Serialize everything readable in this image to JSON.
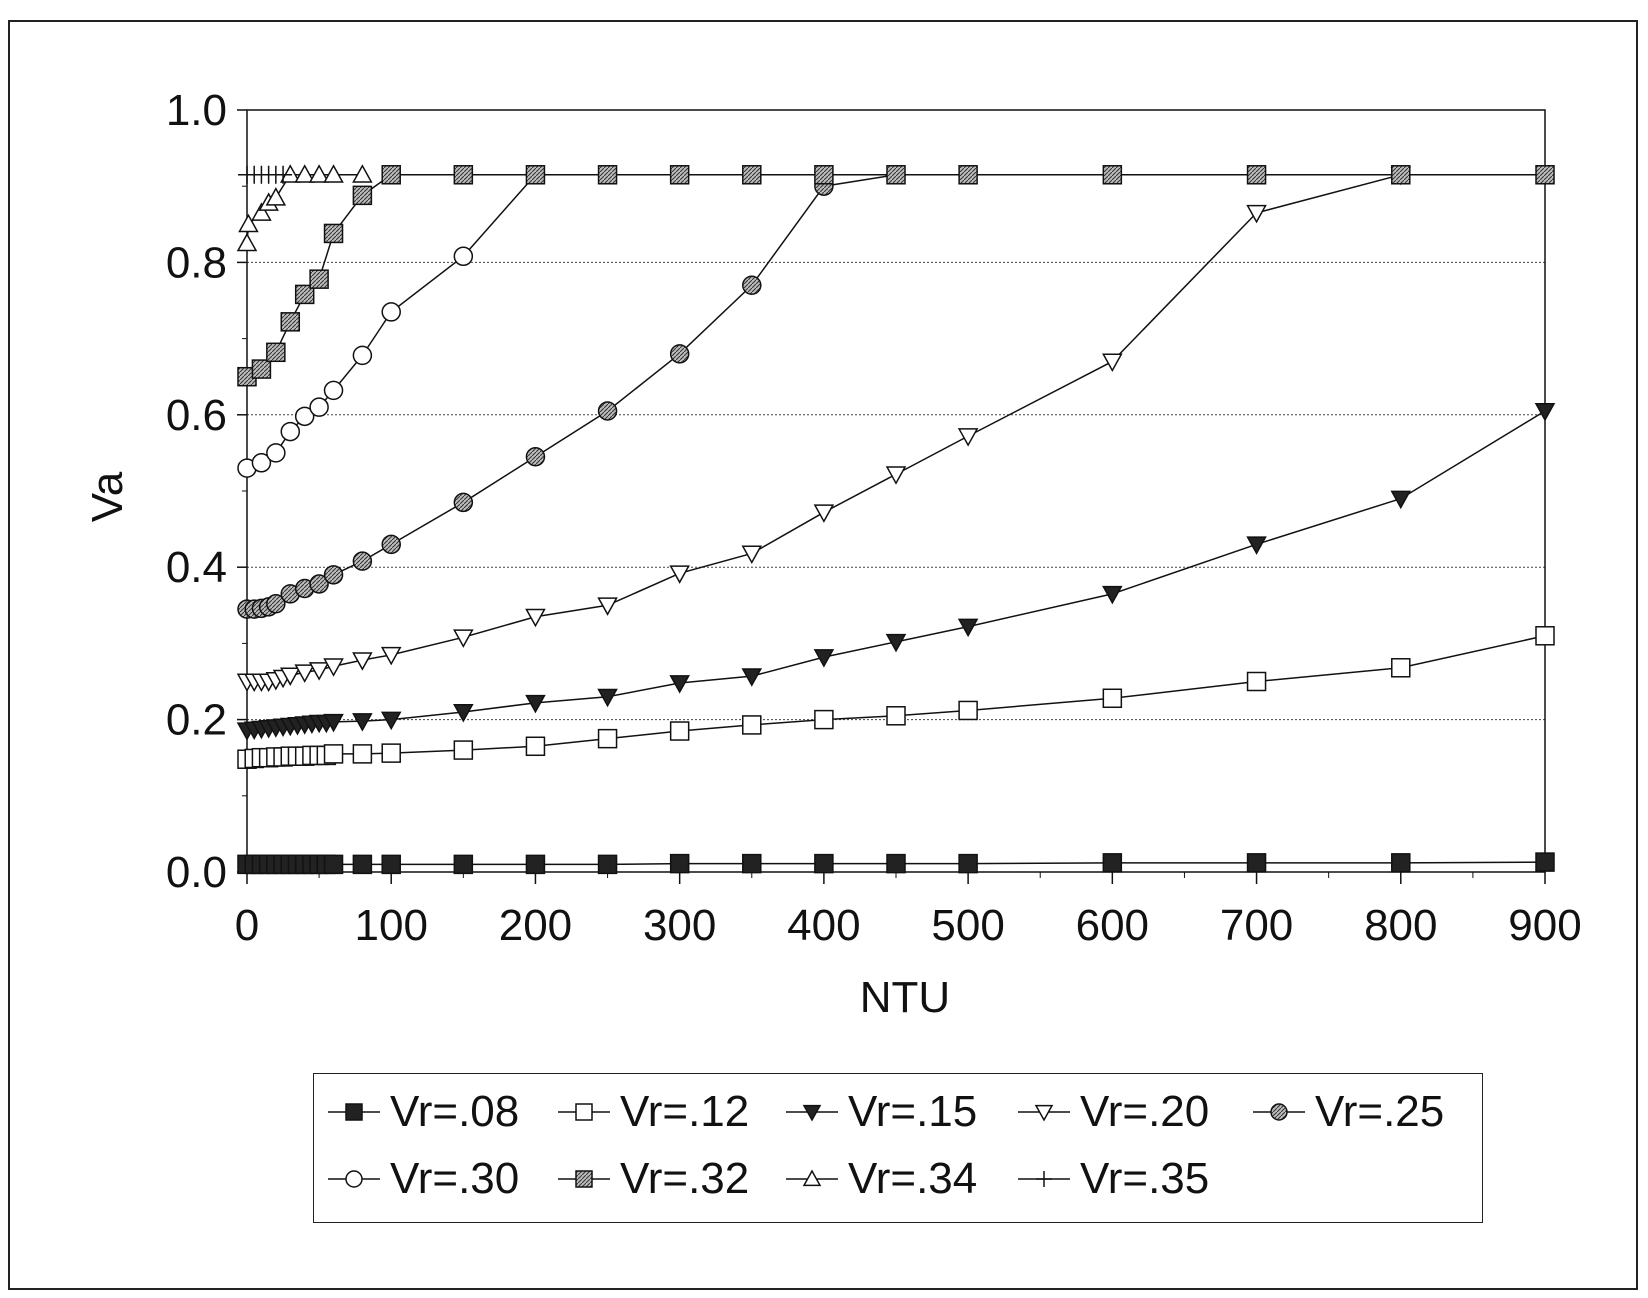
{
  "chart_data": {
    "type": "line",
    "title": "",
    "xlabel": "NTU",
    "ylabel": "Va",
    "xlim": [
      0,
      900
    ],
    "ylim": [
      0,
      1.0
    ],
    "x_ticks": [
      "0",
      "100",
      "200",
      "300",
      "400",
      "500",
      "600",
      "700",
      "800",
      "900"
    ],
    "y_ticks": [
      "0.0",
      "0.2",
      "0.4",
      "0.6",
      "0.8",
      "1.0"
    ],
    "grid": "horizontal dotted",
    "legend_position": "bottom",
    "series": [
      {
        "name": "Vr=.08",
        "marker": "filled-square",
        "x": [
          0,
          5,
          10,
          15,
          20,
          25,
          30,
          35,
          40,
          45,
          50,
          55,
          60,
          80,
          100,
          150,
          200,
          250,
          300,
          350,
          400,
          450,
          500,
          600,
          700,
          800,
          900
        ],
        "y": [
          0.01,
          0.01,
          0.01,
          0.01,
          0.01,
          0.01,
          0.01,
          0.01,
          0.01,
          0.01,
          0.01,
          0.01,
          0.01,
          0.01,
          0.01,
          0.01,
          0.01,
          0.01,
          0.011,
          0.011,
          0.011,
          0.011,
          0.011,
          0.012,
          0.012,
          0.012,
          0.013
        ]
      },
      {
        "name": "Vr=.12",
        "marker": "open-square",
        "x": [
          0,
          5,
          10,
          15,
          20,
          25,
          30,
          35,
          40,
          45,
          50,
          55,
          60,
          80,
          100,
          150,
          200,
          250,
          300,
          350,
          400,
          450,
          500,
          600,
          700,
          800,
          900
        ],
        "y": [
          0.148,
          0.149,
          0.15,
          0.15,
          0.151,
          0.151,
          0.152,
          0.152,
          0.152,
          0.153,
          0.153,
          0.153,
          0.155,
          0.155,
          0.156,
          0.16,
          0.165,
          0.175,
          0.185,
          0.193,
          0.2,
          0.205,
          0.212,
          0.228,
          0.25,
          0.268,
          0.31
        ]
      },
      {
        "name": "Vr=.15",
        "marker": "filled-triangle-down",
        "x": [
          0,
          5,
          10,
          15,
          20,
          25,
          30,
          35,
          40,
          45,
          50,
          55,
          60,
          80,
          100,
          150,
          200,
          250,
          300,
          350,
          400,
          450,
          500,
          600,
          700,
          800,
          900
        ],
        "y": [
          0.186,
          0.187,
          0.188,
          0.189,
          0.19,
          0.191,
          0.192,
          0.193,
          0.194,
          0.195,
          0.196,
          0.196,
          0.197,
          0.198,
          0.2,
          0.21,
          0.222,
          0.23,
          0.248,
          0.257,
          0.282,
          0.302,
          0.322,
          0.365,
          0.43,
          0.49,
          0.605
        ]
      },
      {
        "name": "Vr=.20",
        "marker": "open-triangle-down",
        "x": [
          0,
          5,
          10,
          15,
          20,
          25,
          30,
          40,
          50,
          60,
          80,
          100,
          150,
          200,
          250,
          300,
          350,
          400,
          450,
          500,
          600,
          700,
          800
        ],
        "y": [
          0.25,
          0.25,
          0.25,
          0.25,
          0.252,
          0.255,
          0.258,
          0.262,
          0.265,
          0.27,
          0.278,
          0.285,
          0.308,
          0.335,
          0.35,
          0.392,
          0.418,
          0.472,
          0.522,
          0.572,
          0.67,
          0.865,
          0.915
        ]
      },
      {
        "name": "Vr=.25",
        "marker": "hatched-circle",
        "x": [
          0,
          5,
          10,
          15,
          20,
          30,
          40,
          50,
          60,
          80,
          100,
          150,
          200,
          250,
          300,
          350,
          400,
          450
        ],
        "y": [
          0.345,
          0.345,
          0.346,
          0.348,
          0.352,
          0.365,
          0.372,
          0.378,
          0.39,
          0.408,
          0.43,
          0.485,
          0.545,
          0.605,
          0.68,
          0.77,
          0.9,
          0.915
        ]
      },
      {
        "name": "Vr=.30",
        "marker": "open-circle",
        "x": [
          0,
          10,
          20,
          30,
          40,
          50,
          60,
          80,
          100,
          150,
          200
        ],
        "y": [
          0.53,
          0.537,
          0.55,
          0.578,
          0.598,
          0.61,
          0.632,
          0.678,
          0.735,
          0.808,
          0.915
        ]
      },
      {
        "name": "Vr=.32",
        "marker": "hatched-square",
        "x": [
          0,
          10,
          20,
          30,
          40,
          50,
          60,
          80,
          100,
          150,
          200,
          250,
          300,
          350,
          400,
          450,
          500,
          600,
          700,
          800,
          900
        ],
        "y": [
          0.65,
          0.66,
          0.682,
          0.722,
          0.758,
          0.778,
          0.838,
          0.888,
          0.915,
          0.915,
          0.915,
          0.915,
          0.915,
          0.915,
          0.915,
          0.915,
          0.915,
          0.915,
          0.915,
          0.915,
          0.915
        ]
      },
      {
        "name": "Vr=.34",
        "marker": "open-triangle-up",
        "x": [
          0,
          1,
          10,
          15,
          20,
          30,
          40,
          50,
          60,
          80
        ],
        "y": [
          0.825,
          0.85,
          0.865,
          0.878,
          0.885,
          0.915,
          0.915,
          0.915,
          0.915,
          0.915
        ]
      },
      {
        "name": "Vr=.35",
        "marker": "plus",
        "x": [
          0,
          5,
          10,
          15,
          20,
          25
        ],
        "y": [
          0.915,
          0.915,
          0.915,
          0.915,
          0.915,
          0.915
        ]
      }
    ]
  }
}
